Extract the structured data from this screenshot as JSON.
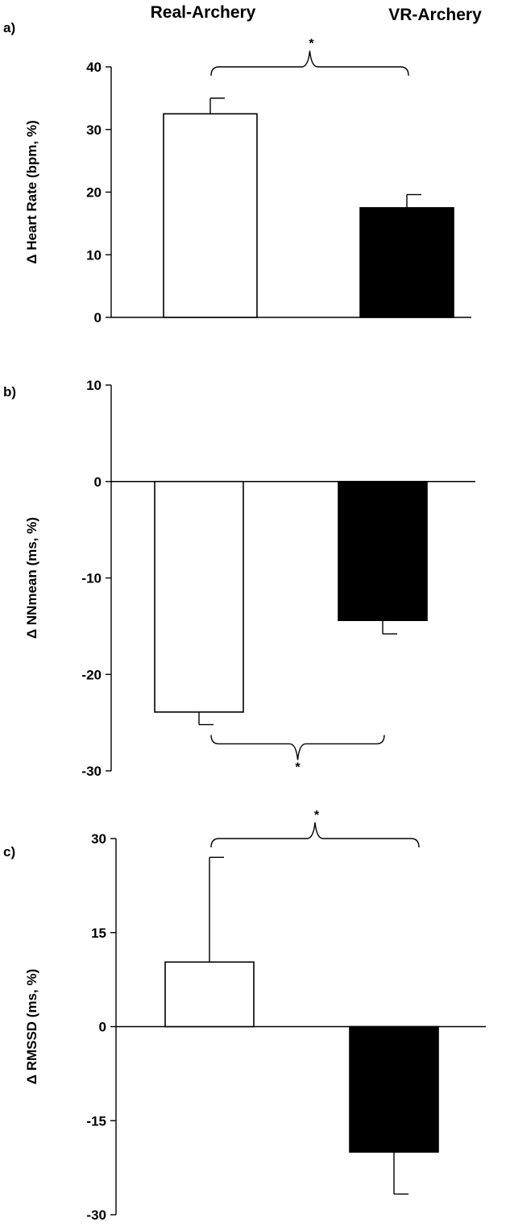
{
  "header": {
    "group_a": "Real-Archery",
    "group_b": "VR-Archery"
  },
  "chart_data": [
    {
      "type": "bar",
      "panel_label": "a)",
      "ylabel": "Δ Heart Rate (bpm, %)",
      "categories": [
        "Real-Archery",
        "VR-Archery"
      ],
      "values": [
        32.5,
        17.5
      ],
      "errors": [
        2.5,
        2.1
      ],
      "error_direction": "up",
      "bar_fills": [
        "#ffffff",
        "#000000"
      ],
      "ylim": [
        0,
        40
      ],
      "yticks": [
        0,
        10,
        20,
        30,
        40
      ],
      "significance": {
        "label": "*",
        "bracket_y": 40.0,
        "position": "above"
      }
    },
    {
      "type": "bar",
      "panel_label": "b)",
      "ylabel": "Δ NNmean (ms, %)",
      "categories": [
        "Real-Archery",
        "VR-Archery"
      ],
      "values": [
        -23.9,
        -14.4
      ],
      "errors": [
        1.3,
        1.4
      ],
      "error_direction": "down",
      "bar_fills": [
        "#ffffff",
        "#000000"
      ],
      "ylim": [
        -30,
        10
      ],
      "yticks": [
        -30,
        -20,
        -10,
        0,
        10
      ],
      "significance": {
        "label": "*",
        "bracket_y": -27.2,
        "position": "below"
      }
    },
    {
      "type": "bar",
      "panel_label": "c)",
      "ylabel": "Δ RMSSD (ms, %)",
      "categories": [
        "Real-Archery",
        "VR-Archery"
      ],
      "values": [
        10.3,
        -20.0
      ],
      "errors": [
        16.7,
        6.7
      ],
      "error_direction": "outward",
      "bar_fills": [
        "#ffffff",
        "#000000"
      ],
      "ylim": [
        -30,
        30
      ],
      "yticks": [
        -30,
        -15,
        0,
        15,
        30
      ],
      "significance": {
        "label": "*",
        "bracket_y": 30.0,
        "position": "above"
      }
    }
  ]
}
